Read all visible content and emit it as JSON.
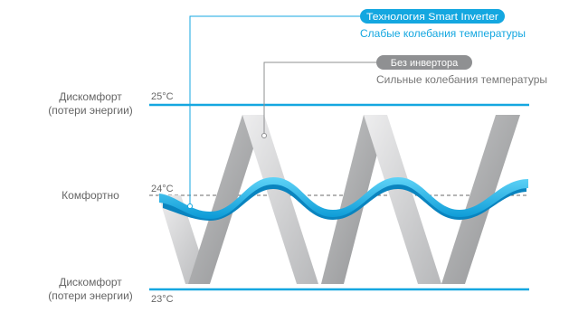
{
  "legend": {
    "inverter": {
      "badge": "Технология Smart Inverter",
      "caption": "Слабые колебания температуры"
    },
    "no_inverter": {
      "badge": "Без инвертора",
      "caption": "Сильные колебания температуры"
    }
  },
  "zones": {
    "top_line1": "Дискомфорт",
    "top_line2": "(потери энергии)",
    "comfort": "Комфортно",
    "bottom_line1": "Дискомфорт",
    "bottom_line2": "(потери энергии)"
  },
  "temps": {
    "high": "25°C",
    "mid": "24°C",
    "low": "23°C"
  },
  "colors": {
    "accent": "#14a7e0",
    "ribbon_dark": "#9fa0a2",
    "ribbon_light": "#d3d4d5",
    "badge_gray": "#8f9092",
    "text_gray": "#666666"
  }
}
